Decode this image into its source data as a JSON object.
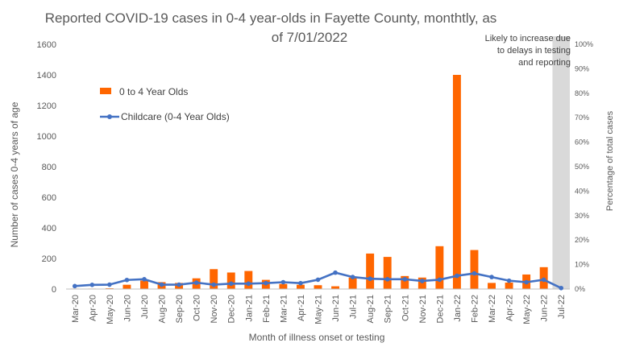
{
  "chart_data": {
    "type": "bar",
    "title_lines": [
      "Reported COVID-19 cases in 0-4 year-olds in Fayette County, monthtly, as",
      "of 7/01/2022"
    ],
    "xlabel": "Month of illness onset or testing",
    "ylabel": "Number of cases 0-4 years of age",
    "y2label": "Percentage of total cases",
    "categories": [
      "Mar-20",
      "Apr-20",
      "May-20",
      "Jun-20",
      "Jul-20",
      "Aug-20",
      "Sep-20",
      "Oct-20",
      "Nov-20",
      "Dec-20",
      "Jan-21",
      "Feb-21",
      "Mar-21",
      "Apr-21",
      "May-21",
      "Jun-21",
      "Jul-21",
      "Aug-21",
      "Sep-21",
      "Oct-21",
      "Nov-21",
      "Dec-21",
      "Jan-22",
      "Feb-22",
      "Mar-22",
      "Apr-22",
      "May-22",
      "Jun-22",
      "Jul-22"
    ],
    "ylim": [
      0,
      1600
    ],
    "yticks": [
      0,
      200,
      400,
      600,
      800,
      1000,
      1200,
      1400,
      1600
    ],
    "y2lim": [
      0,
      100
    ],
    "y2ticks": [
      "0%",
      "10%",
      "20%",
      "30%",
      "40%",
      "50%",
      "60%",
      "70%",
      "80%",
      "90%",
      "100%"
    ],
    "series": [
      {
        "name": "0 to 4 Year Olds",
        "type": "bar",
        "color": "#ff6600",
        "axis": "left",
        "values": [
          3,
          3,
          5,
          28,
          55,
          45,
          40,
          70,
          130,
          108,
          118,
          60,
          33,
          28,
          25,
          18,
          75,
          232,
          210,
          85,
          75,
          280,
          1400,
          255,
          40,
          42,
          95,
          143,
          0
        ]
      },
      {
        "name": "Childcare (0-4 Year Olds)",
        "type": "line",
        "color": "#4472c4",
        "axis": "right",
        "values": [
          1.2,
          1.7,
          1.8,
          3.7,
          4.0,
          1.8,
          1.8,
          2.6,
          1.8,
          2.2,
          2.2,
          2.4,
          2.8,
          2.4,
          3.8,
          6.7,
          4.9,
          4.2,
          4.0,
          4.0,
          3.3,
          3.8,
          5.4,
          6.4,
          4.9,
          3.4,
          2.8,
          3.8,
          0.4
        ]
      }
    ],
    "shaded_category": "Jul-22",
    "annotation_lines": [
      "Likely to increase due",
      "to delays in testing",
      "and reporting"
    ],
    "legend": "left-upper-inside",
    "grid": false
  }
}
